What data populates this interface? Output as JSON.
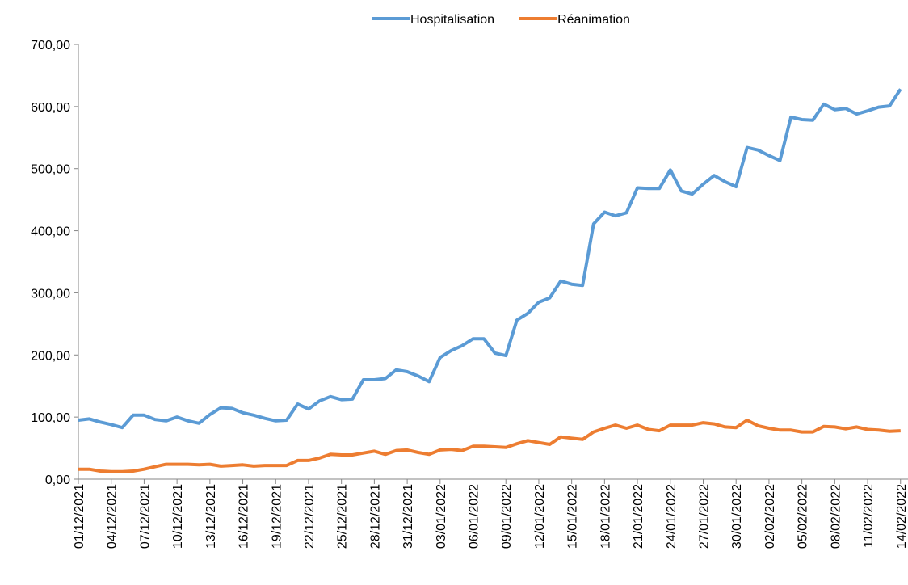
{
  "chart_data": {
    "type": "line",
    "categories": [
      "01/12/2021",
      null,
      null,
      "04/12/2021",
      null,
      null,
      "07/12/2021",
      null,
      null,
      "10/12/2021",
      null,
      null,
      "13/12/2021",
      null,
      null,
      "16/12/2021",
      null,
      null,
      "19/12/2021",
      null,
      null,
      "22/12/2021",
      null,
      null,
      "25/12/2021",
      null,
      null,
      "28/12/2021",
      null,
      null,
      "31/12/2021",
      null,
      null,
      "03/01/2022",
      null,
      null,
      "06/01/2022",
      null,
      null,
      "09/01/2022",
      null,
      null,
      "12/01/2022",
      null,
      null,
      "15/01/2022",
      null,
      null,
      "18/01/2022",
      null,
      null,
      "21/01/2022",
      null,
      null,
      "24/01/2022",
      null,
      null,
      "27/01/2022",
      null,
      null,
      "30/01/2022",
      null,
      null,
      "02/02/2022",
      null,
      null,
      "05/02/2022",
      null,
      null,
      "08/02/2022",
      null,
      null,
      "11/02/2022",
      null,
      null,
      "14/02/2022"
    ],
    "series": [
      {
        "name": "Hospitalisation",
        "color": "#5b9bd5",
        "values": [
          95,
          97,
          92,
          88,
          83,
          103,
          103,
          96,
          94,
          100,
          94,
          90,
          104,
          115,
          114,
          107,
          103,
          98,
          94,
          95,
          121,
          113,
          126,
          133,
          128,
          129,
          160,
          160,
          162,
          176,
          173,
          166,
          157,
          196,
          207,
          215,
          226,
          226,
          203,
          199,
          256,
          267,
          285,
          292,
          319,
          314,
          312,
          411,
          430,
          424,
          429,
          469,
          468,
          468,
          498,
          464,
          459,
          475,
          489,
          479,
          471,
          534,
          530,
          521,
          513,
          583,
          579,
          578,
          604,
          595,
          597,
          588,
          593,
          599,
          601,
          628
        ]
      },
      {
        "name": "Réanimation",
        "color": "#ed7d31",
        "values": [
          16,
          16,
          13,
          12,
          12,
          13,
          16,
          20,
          24,
          24,
          24,
          23,
          24,
          21,
          22,
          23,
          21,
          22,
          22,
          22,
          30,
          30,
          34,
          40,
          39,
          39,
          42,
          45,
          40,
          46,
          47,
          43,
          40,
          47,
          48,
          46,
          53,
          53,
          52,
          51,
          57,
          62,
          59,
          56,
          68,
          66,
          64,
          76,
          82,
          87,
          82,
          87,
          80,
          78,
          87,
          87,
          87,
          91,
          89,
          84,
          83,
          95,
          86,
          82,
          79,
          79,
          76,
          76,
          85,
          84,
          81,
          84,
          80,
          79,
          77,
          78
        ]
      }
    ],
    "ylim": [
      0,
      700
    ],
    "yticks": [
      {
        "value": 0,
        "label": "0,00"
      },
      {
        "value": 100,
        "label": "100,00"
      },
      {
        "value": 200,
        "label": "200,00"
      },
      {
        "value": 300,
        "label": "300,00"
      },
      {
        "value": 400,
        "label": "400,00"
      },
      {
        "value": 500,
        "label": "500,00"
      },
      {
        "value": 600,
        "label": "600,00"
      },
      {
        "value": 700,
        "label": "700,00"
      }
    ],
    "grid": false,
    "legend": "top"
  }
}
